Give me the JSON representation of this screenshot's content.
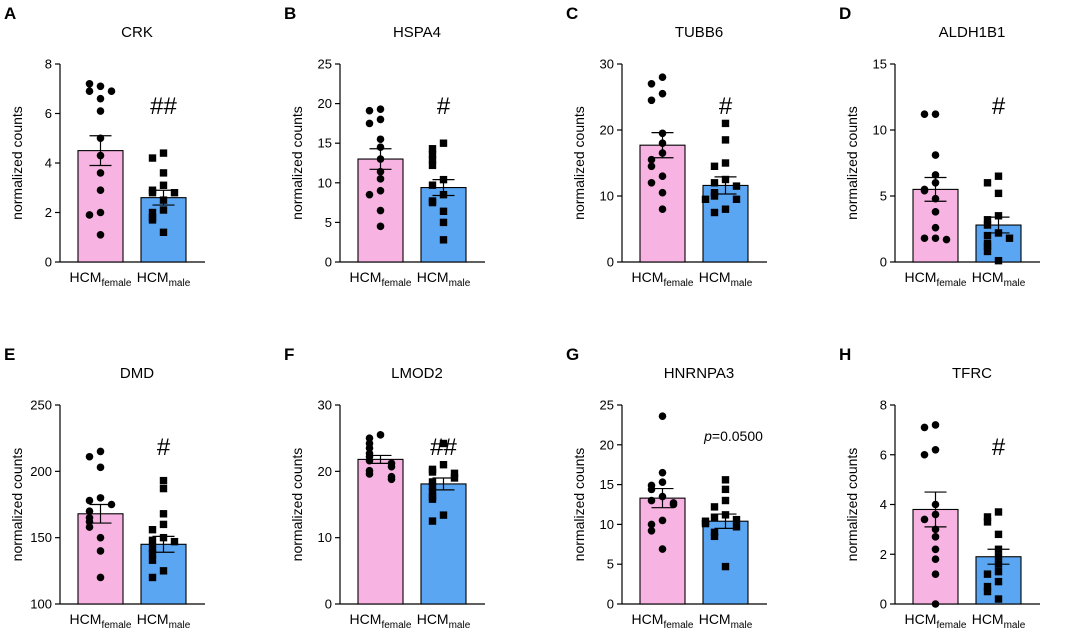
{
  "figure": {
    "colors": {
      "female": "#f7b3e1",
      "male": "#5aa6f2",
      "axis": "#000000"
    },
    "group_label_main": "HCM",
    "group_label_female_sub": "female",
    "group_label_male_sub": "male"
  },
  "chart_data": [
    {
      "type": "bar",
      "letter": "A",
      "title": "CRK",
      "ylabel": "normalized counts",
      "ylim": [
        0,
        8
      ],
      "yticks": [
        0,
        2,
        4,
        6,
        8
      ],
      "annotation": "##",
      "categories": [
        "HCMfemale",
        "HCMmale"
      ],
      "series": [
        {
          "name": "HCMfemale",
          "mean": 4.5,
          "sem": 0.6,
          "points": [
            7.1,
            7.2,
            6.9,
            6.9,
            6.6,
            6.1,
            5.0,
            4.3,
            3.6,
            2.9,
            2.0,
            1.9,
            1.1
          ]
        },
        {
          "name": "HCMmale",
          "mean": 2.6,
          "sem": 0.3,
          "points": [
            4.4,
            4.2,
            3.6,
            3.1,
            2.9,
            2.8,
            2.8,
            2.5,
            2.1,
            2.0,
            1.8,
            1.7,
            1.2
          ]
        }
      ]
    },
    {
      "type": "bar",
      "letter": "B",
      "title": "HSPA4",
      "ylabel": "normalized counts",
      "ylim": [
        0,
        25
      ],
      "yticks": [
        0,
        5,
        10,
        15,
        20,
        25
      ],
      "annotation": "#",
      "categories": [
        "HCMfemale",
        "HCMmale"
      ],
      "series": [
        {
          "name": "HCMfemale",
          "mean": 13.0,
          "sem": 1.3,
          "points": [
            19.3,
            19.1,
            18.0,
            17.5,
            15.5,
            14.5,
            13.0,
            11.4,
            10.5,
            9.0,
            8.5,
            6.5,
            4.5
          ]
        },
        {
          "name": "HCMmale",
          "mean": 9.4,
          "sem": 1.0,
          "points": [
            15.0,
            14.3,
            13.6,
            12.9,
            12.2,
            10.4,
            9.7,
            8.5,
            7.7,
            7.5,
            6.4,
            5.0,
            2.8
          ]
        }
      ]
    },
    {
      "type": "bar",
      "letter": "C",
      "title": "TUBB6",
      "ylabel": "normalized counts",
      "ylim": [
        0,
        30
      ],
      "yticks": [
        0,
        10,
        20,
        30
      ],
      "annotation": "#",
      "categories": [
        "HCMfemale",
        "HCMmale"
      ],
      "series": [
        {
          "name": "HCMfemale",
          "mean": 17.7,
          "sem": 1.9,
          "points": [
            28.0,
            27.0,
            25.5,
            24.5,
            19.5,
            18.0,
            16.5,
            15.5,
            14.5,
            13.0,
            12.0,
            10.5,
            8.0
          ]
        },
        {
          "name": "HCMmale",
          "mean": 11.6,
          "sem": 1.3,
          "points": [
            21.0,
            18.5,
            15.0,
            14.5,
            12.5,
            12.0,
            11.5,
            10.5,
            10.0,
            9.5,
            9.5,
            8.0,
            7.5
          ]
        }
      ]
    },
    {
      "type": "bar",
      "letter": "D",
      "title": "ALDH1B1",
      "ylabel": "normalized counts",
      "ylim": [
        0,
        15
      ],
      "yticks": [
        0,
        5,
        10,
        15
      ],
      "annotation": "#",
      "categories": [
        "HCMfemale",
        "HCMmale"
      ],
      "series": [
        {
          "name": "HCMfemale",
          "mean": 5.5,
          "sem": 0.9,
          "points": [
            11.2,
            11.2,
            8.1,
            6.6,
            6.0,
            5.5,
            5.4,
            4.8,
            3.8,
            2.6,
            1.8,
            1.8,
            1.7
          ]
        },
        {
          "name": "HCMmale",
          "mean": 2.8,
          "sem": 0.6,
          "points": [
            6.5,
            6.0,
            5.2,
            3.5,
            3.2,
            2.8,
            2.2,
            2.0,
            1.8,
            1.4,
            1.2,
            0.8,
            0.1
          ]
        }
      ]
    },
    {
      "type": "bar",
      "letter": "E",
      "title": "DMD",
      "ylabel": "normalized counts",
      "ylim": [
        100,
        250
      ],
      "yticks": [
        100,
        150,
        200,
        250
      ],
      "annotation": "#",
      "categories": [
        "HCMfemale",
        "HCMmale"
      ],
      "series": [
        {
          "name": "HCMfemale",
          "mean": 168,
          "sem": 7,
          "points": [
            215,
            211,
            203,
            180,
            178,
            175,
            170,
            165,
            162,
            158,
            150,
            140,
            120
          ]
        },
        {
          "name": "HCMmale",
          "mean": 145,
          "sem": 6,
          "points": [
            193,
            187,
            168,
            160,
            156,
            150,
            148,
            147,
            142,
            138,
            133,
            125,
            120
          ]
        }
      ]
    },
    {
      "type": "bar",
      "letter": "F",
      "title": "LMOD2",
      "ylabel": "normalized counts",
      "ylim": [
        0,
        30
      ],
      "yticks": [
        0,
        10,
        20,
        30
      ],
      "annotation": "##",
      "categories": [
        "HCMfemale",
        "HCMmale"
      ],
      "series": [
        {
          "name": "HCMfemale",
          "mean": 21.8,
          "sem": 0.6,
          "points": [
            25.5,
            25.0,
            24.2,
            23.5,
            22.7,
            22.2,
            21.6,
            21.2,
            20.7,
            20.1,
            19.6,
            19.2,
            18.8
          ]
        },
        {
          "name": "HCMmale",
          "mean": 18.1,
          "sem": 0.9,
          "points": [
            24.2,
            21.0,
            20.3,
            19.9,
            19.7,
            19.0,
            18.4,
            17.7,
            16.9,
            16.2,
            15.8,
            13.4,
            12.5
          ]
        }
      ]
    },
    {
      "type": "bar",
      "letter": "G",
      "title": "HNRNPA3",
      "ylabel": "normalized counts",
      "ylim": [
        0,
        25
      ],
      "yticks": [
        0,
        5,
        10,
        15,
        20,
        25
      ],
      "annotation": "p=0.0500",
      "categories": [
        "HCMfemale",
        "HCMmale"
      ],
      "series": [
        {
          "name": "HCMfemale",
          "mean": 13.3,
          "sem": 1.2,
          "points": [
            23.6,
            16.5,
            15.3,
            14.9,
            14.4,
            13.5,
            13.0,
            12.7,
            12.5,
            10.5,
            10.0,
            9.2,
            6.9
          ]
        },
        {
          "name": "HCMmale",
          "mean": 10.4,
          "sem": 0.9,
          "points": [
            15.6,
            14.4,
            13.0,
            12.2,
            11.2,
            10.9,
            10.6,
            10.4,
            10.1,
            9.7,
            9.0,
            8.5,
            4.7
          ]
        }
      ]
    },
    {
      "type": "bar",
      "letter": "H",
      "title": "TFRC",
      "ylabel": "normalized counts",
      "ylim": [
        0,
        8
      ],
      "yticks": [
        0,
        2,
        4,
        6,
        8
      ],
      "annotation": "#",
      "categories": [
        "HCMfemale",
        "HCMmale"
      ],
      "series": [
        {
          "name": "HCMfemale",
          "mean": 3.8,
          "sem": 0.7,
          "points": [
            7.2,
            7.1,
            6.2,
            6.0,
            4.0,
            3.6,
            3.4,
            3.0,
            2.7,
            2.2,
            1.8,
            1.2,
            0.0
          ]
        },
        {
          "name": "HCMmale",
          "mean": 1.9,
          "sem": 0.3,
          "points": [
            3.7,
            3.5,
            3.3,
            2.8,
            2.2,
            1.9,
            1.6,
            1.3,
            1.2,
            0.9,
            0.7,
            0.5,
            0.2
          ]
        }
      ]
    }
  ]
}
